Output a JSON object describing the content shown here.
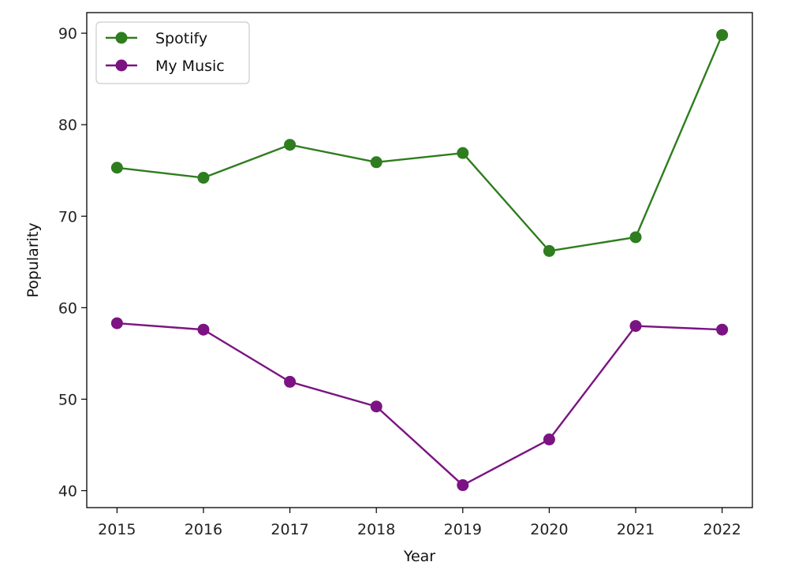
{
  "chart_data": {
    "type": "line",
    "x": [
      2015,
      2016,
      2017,
      2018,
      2019,
      2020,
      2021,
      2022
    ],
    "series": [
      {
        "name": "Spotify",
        "color": "#2e7d1e",
        "marker": "circle",
        "values": [
          75.3,
          74.2,
          77.8,
          75.9,
          76.9,
          66.2,
          67.7,
          89.8
        ]
      },
      {
        "name": "My Music",
        "color": "#7b1382",
        "marker": "circle",
        "values": [
          58.3,
          57.6,
          51.9,
          49.2,
          40.6,
          45.6,
          58.0,
          57.6
        ]
      }
    ],
    "xlabel": "Year",
    "ylabel": "Popularity",
    "xticks": [
      "2015",
      "2016",
      "2017",
      "2018",
      "2019",
      "2020",
      "2021",
      "2022"
    ],
    "yticks": [
      "40",
      "50",
      "60",
      "70",
      "80",
      "90"
    ],
    "xlim": [
      2014.65,
      2022.35
    ],
    "ylim": [
      38.15,
      92.25
    ],
    "grid": false,
    "legend_position": "top-left"
  }
}
